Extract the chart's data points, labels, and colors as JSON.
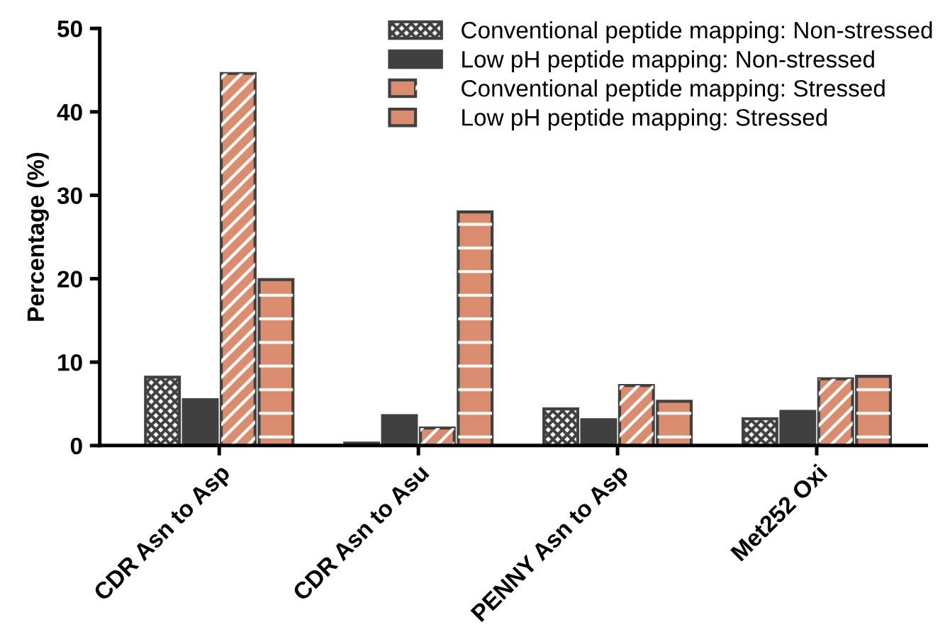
{
  "chart_data": {
    "type": "bar",
    "ylabel": "Percentage (%)",
    "categories": [
      "CDR Asn to Asp",
      "CDR Asn to Asu",
      "PENNY Asn to Asp",
      "Met252 Oxi"
    ],
    "series": [
      {
        "name": "Conventional peptide mapping: Non-stressed",
        "color": "#404040",
        "values": [
          8.2,
          0.3,
          4.4,
          3.2
        ]
      },
      {
        "name": "Low pH peptide mapping: Non-stressed",
        "color": "#404040",
        "values": [
          5.5,
          3.6,
          3.1,
          4.1
        ]
      },
      {
        "name": "Conventional peptide mapping: Stressed",
        "color": "#d98c6e",
        "values": [
          44.6,
          2.1,
          7.2,
          8.0
        ]
      },
      {
        "name": "Low pH peptide mapping: Stressed",
        "color": "#d98c6e",
        "values": [
          19.9,
          28.0,
          5.3,
          8.3
        ]
      }
    ],
    "ylim": [
      0,
      50
    ],
    "yticks": [
      0,
      10,
      20,
      30,
      40,
      50
    ],
    "grid": false,
    "legend": "top right"
  }
}
